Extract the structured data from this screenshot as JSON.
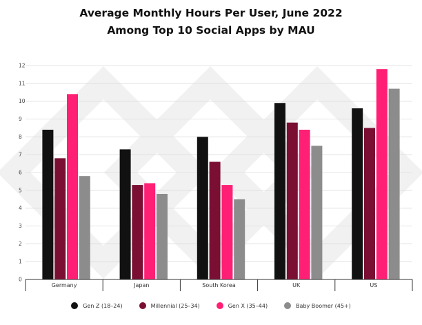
{
  "chart_data": {
    "type": "bar",
    "title": "Average Monthly Hours Per User, June 2022",
    "subtitle": "Among Top 10 Social Apps by MAU",
    "xlabel": "",
    "ylabel": "",
    "ylim": [
      0,
      12
    ],
    "yticks": [
      "0",
      "1",
      "2",
      "3",
      "4",
      "5",
      "6",
      "7",
      "8",
      "9",
      "10",
      "11",
      "12"
    ],
    "grid": true,
    "legend_position": "bottom",
    "categories": [
      "Germany",
      "Japan",
      "South Korea",
      "UK",
      "US"
    ],
    "series": [
      {
        "name": "Gen Z (18–24)",
        "color": "#111111",
        "values": [
          8.4,
          7.3,
          8.0,
          9.9,
          9.6
        ]
      },
      {
        "name": "Millennial (25–34)",
        "color": "#7a0f33",
        "values": [
          6.8,
          5.3,
          6.6,
          8.8,
          8.5
        ]
      },
      {
        "name": "Gen X (35–44)",
        "color": "#ff1f74",
        "values": [
          10.4,
          5.4,
          5.3,
          8.4,
          11.8
        ]
      },
      {
        "name": "Baby Boomer (45+)",
        "color": "#8c8c8c",
        "values": [
          5.8,
          4.8,
          4.5,
          7.5,
          10.7
        ]
      }
    ]
  }
}
